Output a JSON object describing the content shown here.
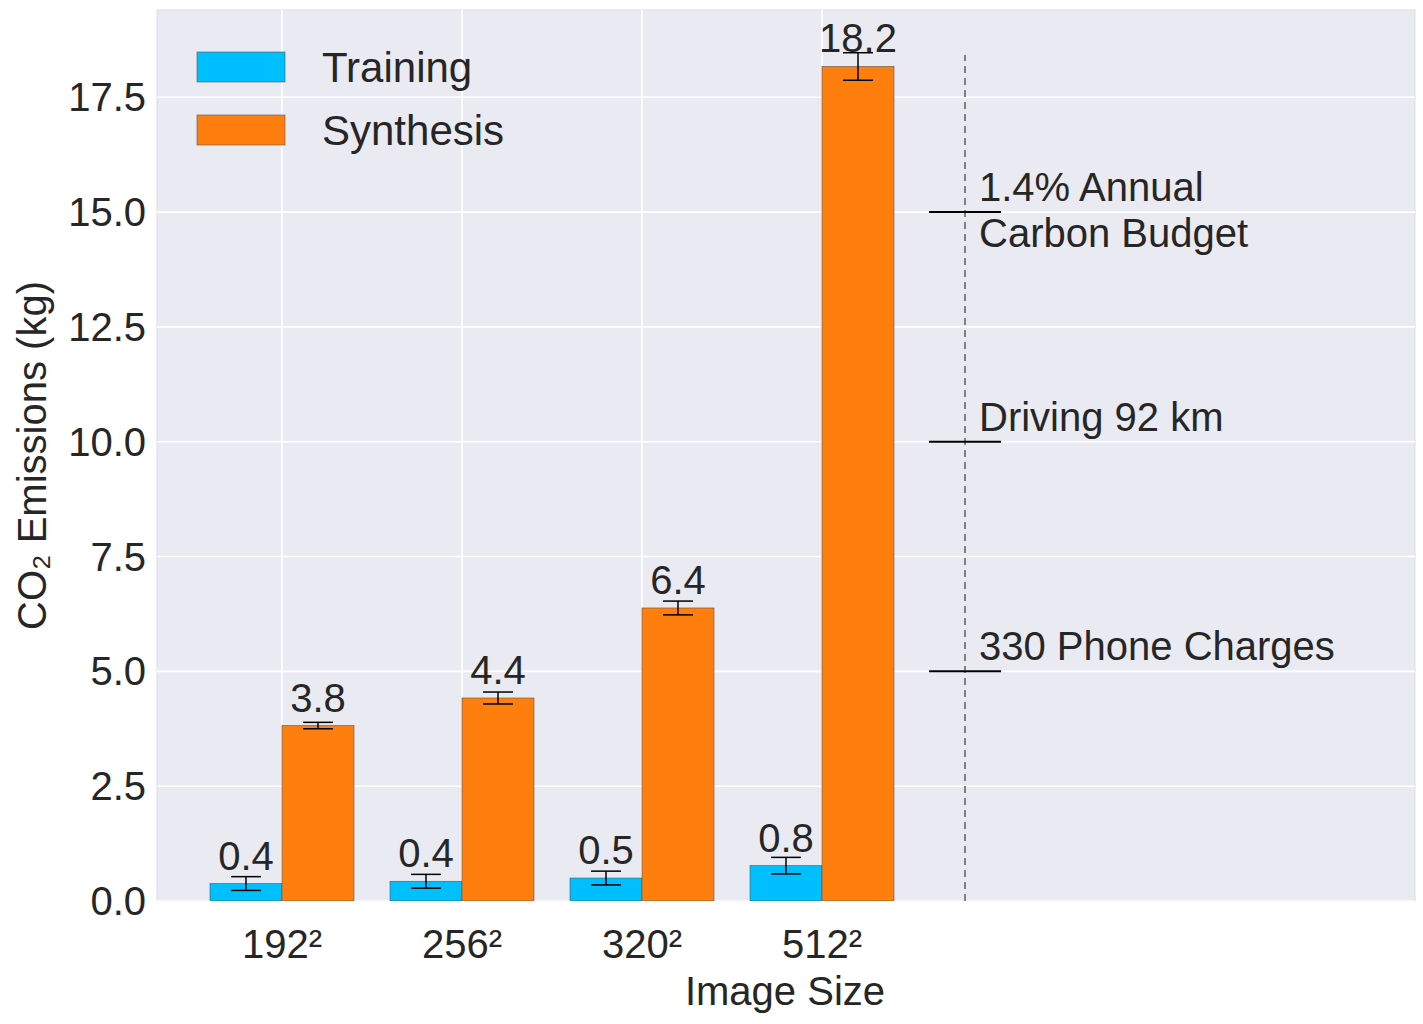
{
  "chart_data": {
    "type": "bar",
    "x_label": "Image Size",
    "y_label": "CO₂ Emissions (kg)",
    "categories": [
      "192²",
      "256²",
      "320²",
      "512²"
    ],
    "series": [
      {
        "name": "Training",
        "color": "#00bfff",
        "values": [
          0.38,
          0.43,
          0.5,
          0.77
        ],
        "value_labels": [
          "0.4",
          "0.4",
          "0.5",
          "0.8"
        ],
        "errors": [
          0.15,
          0.15,
          0.15,
          0.18
        ]
      },
      {
        "name": "Synthesis",
        "color": "#ff7f0e",
        "values": [
          3.82,
          4.42,
          6.38,
          18.17
        ],
        "value_labels": [
          "3.8",
          "4.4",
          "6.4",
          "18.2"
        ],
        "errors": [
          0.07,
          0.13,
          0.15,
          0.3
        ]
      }
    ],
    "ylim": [
      0,
      19.4
    ],
    "yticks": [
      {
        "value": 0,
        "label": "0.0"
      },
      2.5,
      {
        "value": 5,
        "label": "5.0"
      },
      7.5,
      {
        "value": 10,
        "label": "10.0"
      },
      12.5,
      {
        "value": 15,
        "label": "15.0"
      },
      17.5
    ],
    "annotations": [
      {
        "text": "330 Phone Charges",
        "y": 5
      },
      {
        "text": "Driving 92 km",
        "y": 10
      },
      {
        "text": "1.4% Annual\nCarbon Budget",
        "y": 15
      }
    ],
    "grid": true,
    "legend": "upper left",
    "data_labels": true
  }
}
